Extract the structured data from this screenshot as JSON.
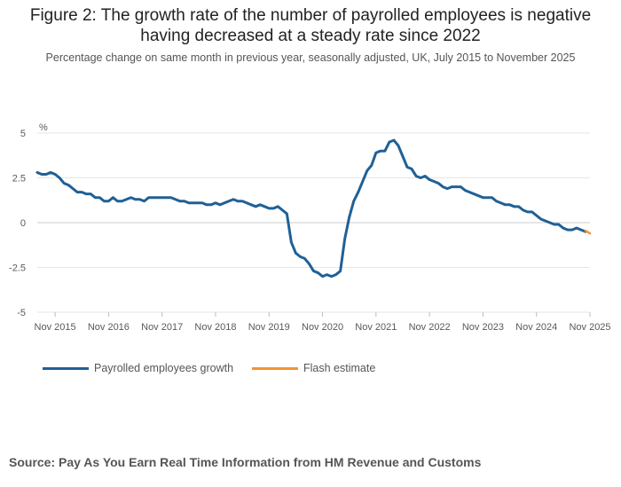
{
  "title_line1": "Figure 2: The growth rate of the number of payrolled employees is negative",
  "title_line2": "having decreased at a steady rate since 2022",
  "subtitle": "Percentage change on same month in previous year, seasonally adjusted, UK, July 2015 to November 2025",
  "source": "Source: Pay As You Earn Real Time Information from HM Revenue and Customs",
  "colors": {
    "series_main": "#206095",
    "series_flash": "#f39431",
    "grid": "#e6e6e6",
    "axis_text": "#595959"
  },
  "chart_data": {
    "type": "line",
    "ylabel": "%",
    "ylim": [
      -5,
      5
    ],
    "yticks": [
      5,
      2.5,
      0,
      -2.5,
      -5
    ],
    "ytick_labels": [
      "5",
      "2.5",
      "0",
      "-2.5",
      "-5"
    ],
    "xlim": [
      "2015-07",
      "2025-11"
    ],
    "xticks": [
      "2015-11",
      "2016-11",
      "2017-11",
      "2018-11",
      "2019-11",
      "2020-11",
      "2021-11",
      "2022-11",
      "2023-11",
      "2024-11",
      "2025-11"
    ],
    "xtick_labels": [
      "Nov 2015",
      "Nov 2016",
      "Nov 2017",
      "Nov 2018",
      "Nov 2019",
      "Nov 2020",
      "Nov 2021",
      "Nov 2022",
      "Nov 2023",
      "Nov 2024",
      "Nov 2025"
    ],
    "legend_position": "bottom-left",
    "series": [
      {
        "name": "Payrolled employees growth",
        "color": "#206095",
        "start": "2015-07",
        "values": [
          2.8,
          2.7,
          2.7,
          2.8,
          2.7,
          2.5,
          2.2,
          2.1,
          1.9,
          1.7,
          1.7,
          1.6,
          1.6,
          1.4,
          1.4,
          1.2,
          1.2,
          1.4,
          1.2,
          1.2,
          1.3,
          1.4,
          1.3,
          1.3,
          1.2,
          1.4,
          1.4,
          1.4,
          1.4,
          1.4,
          1.4,
          1.3,
          1.2,
          1.2,
          1.1,
          1.1,
          1.1,
          1.1,
          1.0,
          1.0,
          1.1,
          1.0,
          1.1,
          1.2,
          1.3,
          1.2,
          1.2,
          1.1,
          1.0,
          0.9,
          1.0,
          0.9,
          0.8,
          0.8,
          0.9,
          0.7,
          0.5,
          -1.1,
          -1.7,
          -1.9,
          -2.0,
          -2.3,
          -2.7,
          -2.8,
          -3.0,
          -2.9,
          -3.0,
          -2.9,
          -2.7,
          -0.9,
          0.3,
          1.2,
          1.7,
          2.3,
          2.9,
          3.2,
          3.9,
          4.0,
          4.0,
          4.5,
          4.6,
          4.3,
          3.7,
          3.1,
          3.0,
          2.6,
          2.5,
          2.6,
          2.4,
          2.3,
          2.2,
          2.0,
          1.9,
          2.0,
          2.0,
          2.0,
          1.8,
          1.7,
          1.6,
          1.5,
          1.4,
          1.4,
          1.4,
          1.2,
          1.1,
          1.0,
          1.0,
          0.9,
          0.9,
          0.7,
          0.6,
          0.6,
          0.4,
          0.2,
          0.1,
          0.0,
          -0.1,
          -0.1,
          -0.3,
          -0.4,
          -0.4,
          -0.3,
          -0.4,
          -0.5
        ]
      },
      {
        "name": "Flash estimate",
        "color": "#f39431",
        "start": "2025-10",
        "values": [
          -0.45,
          -0.6
        ]
      }
    ]
  }
}
